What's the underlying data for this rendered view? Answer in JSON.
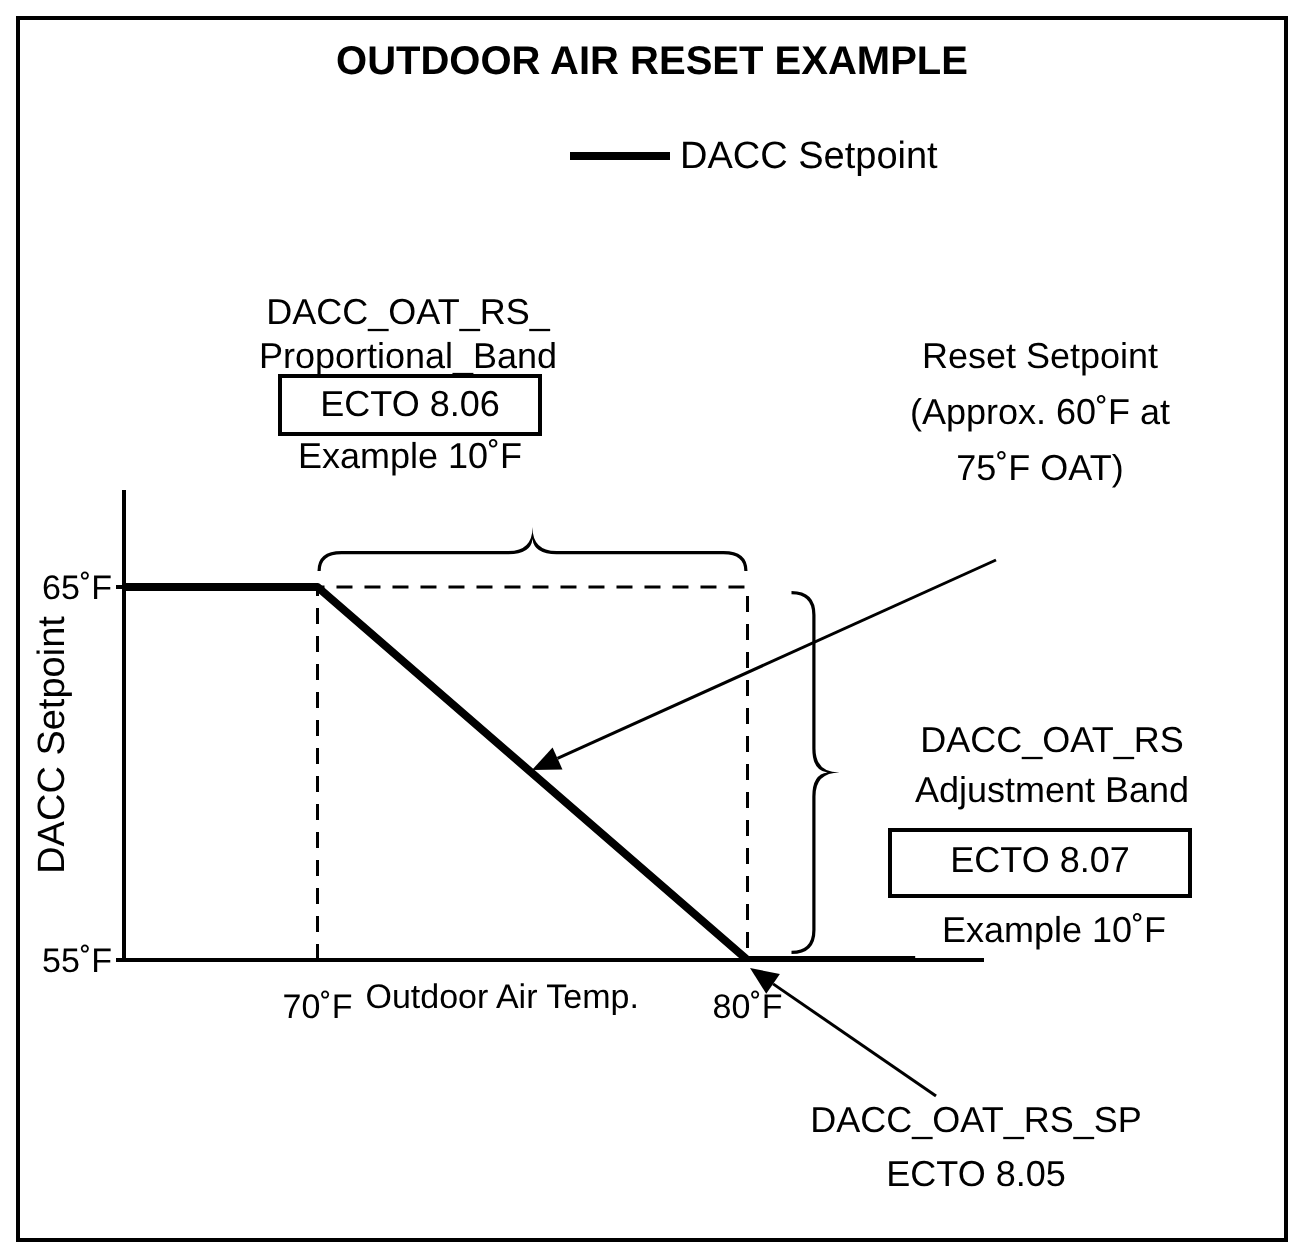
{
  "chart_data": {
    "type": "line",
    "title": "OUTDOOR AIR RESET EXAMPLE",
    "xlabel": "Outdoor Air Temp.",
    "ylabel": "DACC Setpoint",
    "legend": "top",
    "xlim": [
      65.5,
      85.5
    ],
    "xticks": [
      {
        "value": 70,
        "label": "70˚F"
      },
      {
        "value": 80,
        "label": "80˚F"
      }
    ],
    "ylim": [
      55,
      67.6
    ],
    "yticks": [
      {
        "value": 55,
        "label": "55˚F"
      },
      {
        "value": 65,
        "label": "65˚F"
      }
    ],
    "series": [
      {
        "name": "DACC Setpoint",
        "color": "#000000",
        "x": [
          65.5,
          70,
          80,
          83.9
        ],
        "values": [
          65,
          65,
          55,
          55
        ]
      },
      {
        "color": "#000000",
        "line_style": "dashed",
        "x": [
          70,
          70,
          80,
          80
        ],
        "values": [
          55,
          65,
          65,
          55
        ]
      }
    ],
    "annotations": [
      "DACC_OAT_RS_\nProportional_Band",
      "ECTO 8.06",
      "Example 10˚F",
      "Reset Setpoint\n(Approx. 60˚F at\n75˚F OAT)",
      "DACC_OAT_RS\nAdjustment Band",
      "ECTO 8.07",
      "Example 10˚F",
      "DACC_OAT_RS_SP\nECTO 8.05"
    ]
  }
}
